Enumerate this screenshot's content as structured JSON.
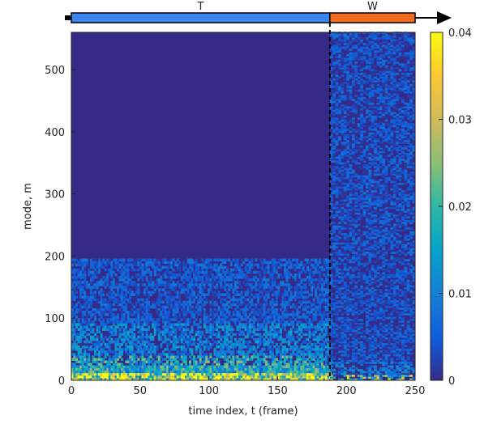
{
  "chart_data": {
    "type": "heatmap",
    "xlabel": "time index, t (frame)",
    "ylabel": "mode, m",
    "xlim": [
      0,
      250
    ],
    "ylim": [
      0,
      560
    ],
    "x_ticks": [
      0,
      50,
      100,
      150,
      200,
      250
    ],
    "y_ticks": [
      0,
      100,
      200,
      300,
      400,
      500
    ],
    "split_frame": 188,
    "top_bar": {
      "segments": [
        {
          "label": "T",
          "start": 0,
          "end": 188,
          "color": "#3a86f0"
        },
        {
          "label": "W",
          "start": 188,
          "end": 250,
          "color": "#f26b1d"
        }
      ]
    },
    "colorbar": {
      "min": 0,
      "max": 0.04,
      "ticks": [
        "0",
        "0.01",
        "0.02",
        "0.03",
        "0.04"
      ],
      "colormap": "parula"
    },
    "regions": [
      {
        "frames": [
          0,
          188
        ],
        "modes": [
          0,
          195
        ],
        "description_level": "active-low-modes"
      },
      {
        "frames": [
          0,
          188
        ],
        "modes": [
          195,
          560
        ],
        "description_level": "zero"
      },
      {
        "frames": [
          188,
          250
        ],
        "modes": [
          0,
          560
        ],
        "description_level": "low-uniform-noise"
      }
    ],
    "background_color": "#352a87"
  }
}
